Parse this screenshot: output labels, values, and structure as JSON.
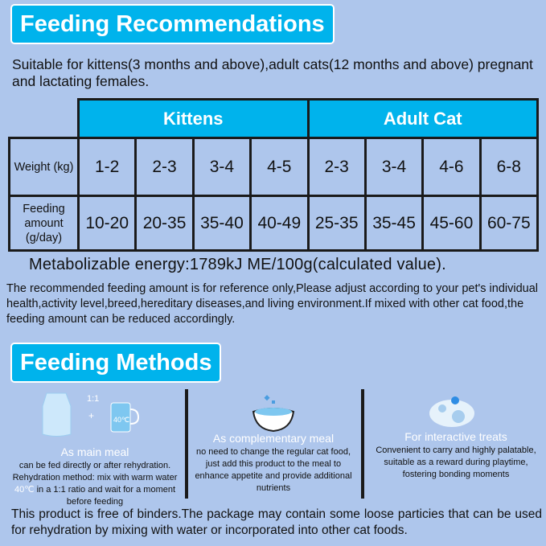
{
  "title": "Feeding Recommendations",
  "intro": "Suitable for kittens(3 months and above),adult cats(12 months and above) pregnant and lactating females.",
  "table": {
    "groups": [
      "Kittens",
      "Adult Cat"
    ],
    "row_labels": {
      "weight": "Weight (kg)",
      "feeding": "Feeding amount (g/day)"
    },
    "weights": [
      "1-2",
      "2-3",
      "3-4",
      "4-5",
      "2-3",
      "3-4",
      "4-6",
      "6-8"
    ],
    "amounts": [
      "10-20",
      "20-35",
      "35-40",
      "40-49",
      "25-35",
      "35-45",
      "45-60",
      "60-75"
    ]
  },
  "energy": "Metabolizable energy:1789kJ  ME/100g(calculated value).",
  "note": "The recommended feeding amount is for reference only,Please adjust according to your pet's individual  health,activity  level,breed,hereditary diseases,and living environment.If mixed with other cat food,the feeding amount can be reduced accordingly.",
  "methods_title": "Feeding Methods",
  "methods": [
    {
      "ratio": "1:1",
      "plus": "+",
      "temp": "40℃",
      "title": "As main meal",
      "text1": "can be fed directly or after rehydration. Rehydration method: mix with warm water ",
      "highlight": "40℃",
      "text2": " in a 1:1 ratio and wait for a moment before feeding"
    },
    {
      "title": "As complementary meal",
      "text": "no need to change the regular cat food, just add this product to the meal to enhance appetite and provide additional nutrients"
    },
    {
      "title": "For interactive treats",
      "text": "Convenient to carry and highly palatable, suitable as a reward during playtime, fostering bonding moments"
    }
  ],
  "footer": "This product is free of binders.The package may contain some loose particies that can be used for rehydration  by mixing with water or incorporated  into other cat  foods.",
  "colors": {
    "background": "#aec6ec",
    "accent": "#00b3ec",
    "border": "#1a1a1a"
  }
}
